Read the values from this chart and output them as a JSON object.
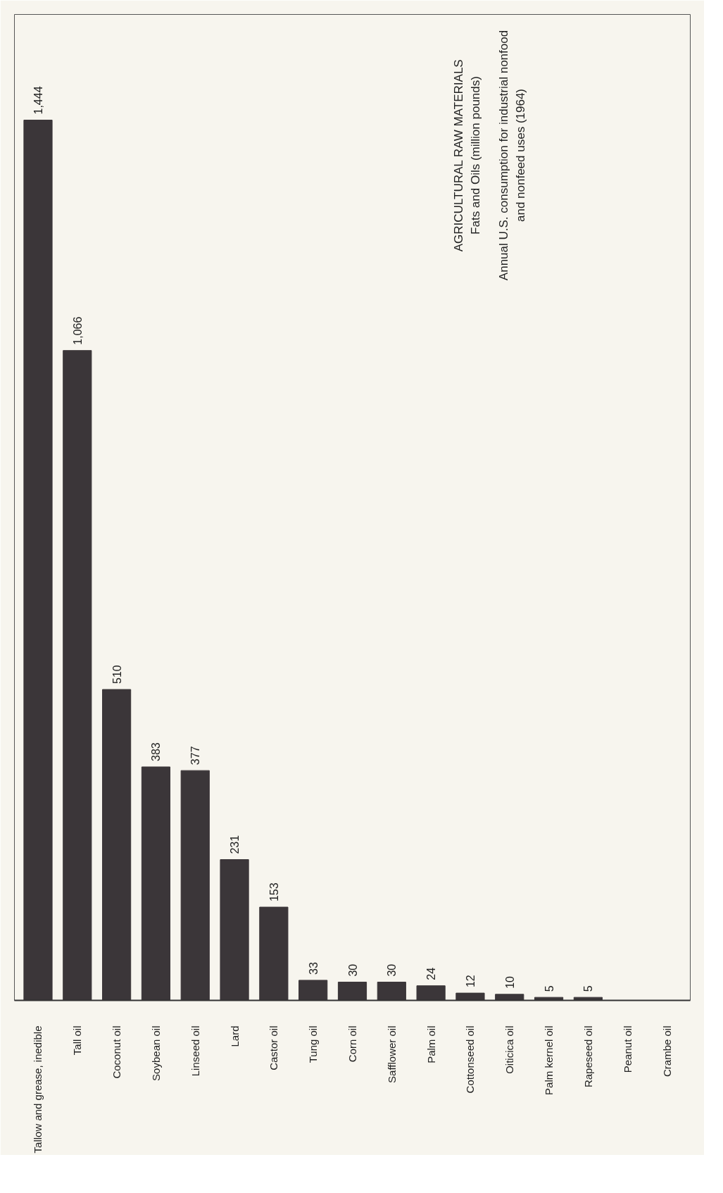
{
  "chart_data": {
    "type": "bar",
    "title": "AGRICULTURAL RAW MATERIALS",
    "subtitle": "Fats and Oils (million pounds)",
    "annotations": [
      "Annual U.S. consumption for industrial nonfood and nonfeed uses (1964)"
    ],
    "categories": [
      "Tallow and grease, inedible",
      "Tall oil",
      "Coconut oil",
      "Soybean oil",
      "Linseed oil",
      "Lard",
      "Castor oil",
      "Tung oil",
      "Corn oil",
      "Safflower oil",
      "Palm oil",
      "Cottonseed oil",
      "Oiticica oil",
      "Palm kernel oil",
      "Rapeseed oil",
      "Peanut oil",
      "Crambe oil"
    ],
    "values": [
      1444,
      1066,
      510,
      383,
      377,
      231,
      153,
      33,
      30,
      30,
      24,
      12,
      10,
      5,
      5,
      null,
      null
    ],
    "color": "#3b3639",
    "value_labels": [
      "1,444",
      "1,066",
      "510",
      "383",
      "377",
      "231",
      "153",
      "33",
      "30",
      "30",
      "24",
      "12",
      "10",
      "5",
      "5",
      null,
      null
    ]
  }
}
